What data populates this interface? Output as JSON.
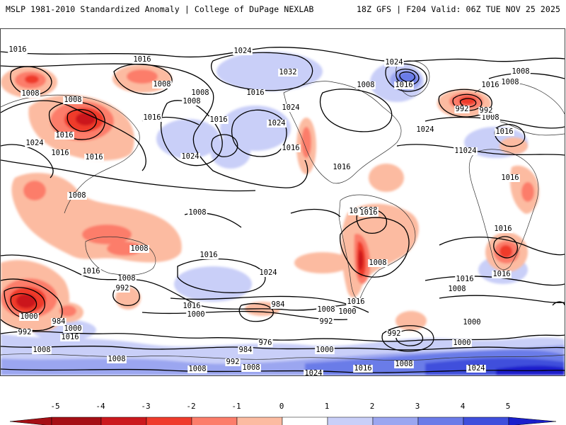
{
  "header": {
    "left_title": "MSLP 1981-2010 Standardized Anomaly | College of DuPage NEXLAB",
    "right_title": "18Z GFS | F204 Valid: 06Z TUE NOV 25 2025"
  },
  "colorbar": {
    "ticks": [
      "-5",
      "-4",
      "-3",
      "-2",
      "-1",
      "0",
      "1",
      "2",
      "3",
      "4",
      "5"
    ],
    "colors": {
      "n5": "#a50f15",
      "n4": "#cb181d",
      "n3": "#ef3b2c",
      "n2": "#fc7d6a",
      "n1": "#fcbba1",
      "zero": "#ffffff",
      "p1": "#c9cff8",
      "p2": "#9ba6f0",
      "p3": "#6b7be8",
      "p4": "#3f4fdc",
      "p5": "#1a1fcc"
    }
  },
  "map": {
    "contour_labels": [
      "1016",
      "1016",
      "1024",
      "1024",
      "1016",
      "1008",
      "1032",
      "1016",
      "1024",
      "1016",
      "1008",
      "1008",
      "1008",
      "1016",
      "1016",
      "1024",
      "1024",
      "1016",
      "1016",
      "1024",
      "1016",
      "1008",
      "992",
      "1016",
      "1008",
      "1024",
      "1016",
      "1016",
      "1008",
      "1008",
      "1008",
      "1008",
      "1016",
      "1024",
      "1016",
      "1008",
      "1008",
      "992",
      "1016",
      "1000",
      "984",
      "1016",
      "1000",
      "1008",
      "992",
      "984",
      "992",
      "1000",
      "1016",
      "1000",
      "1008",
      "1008",
      "992",
      "1000",
      "1008",
      "984",
      "976",
      "992",
      "1000",
      "1000",
      "1016",
      "1008",
      "1024",
      "1016",
      "1008",
      "1024",
      "1008",
      "1016",
      "1016",
      "1016",
      "1008",
      "1024",
      "1008",
      "992",
      "1008",
      "1016",
      "1016",
      "1024"
    ]
  }
}
